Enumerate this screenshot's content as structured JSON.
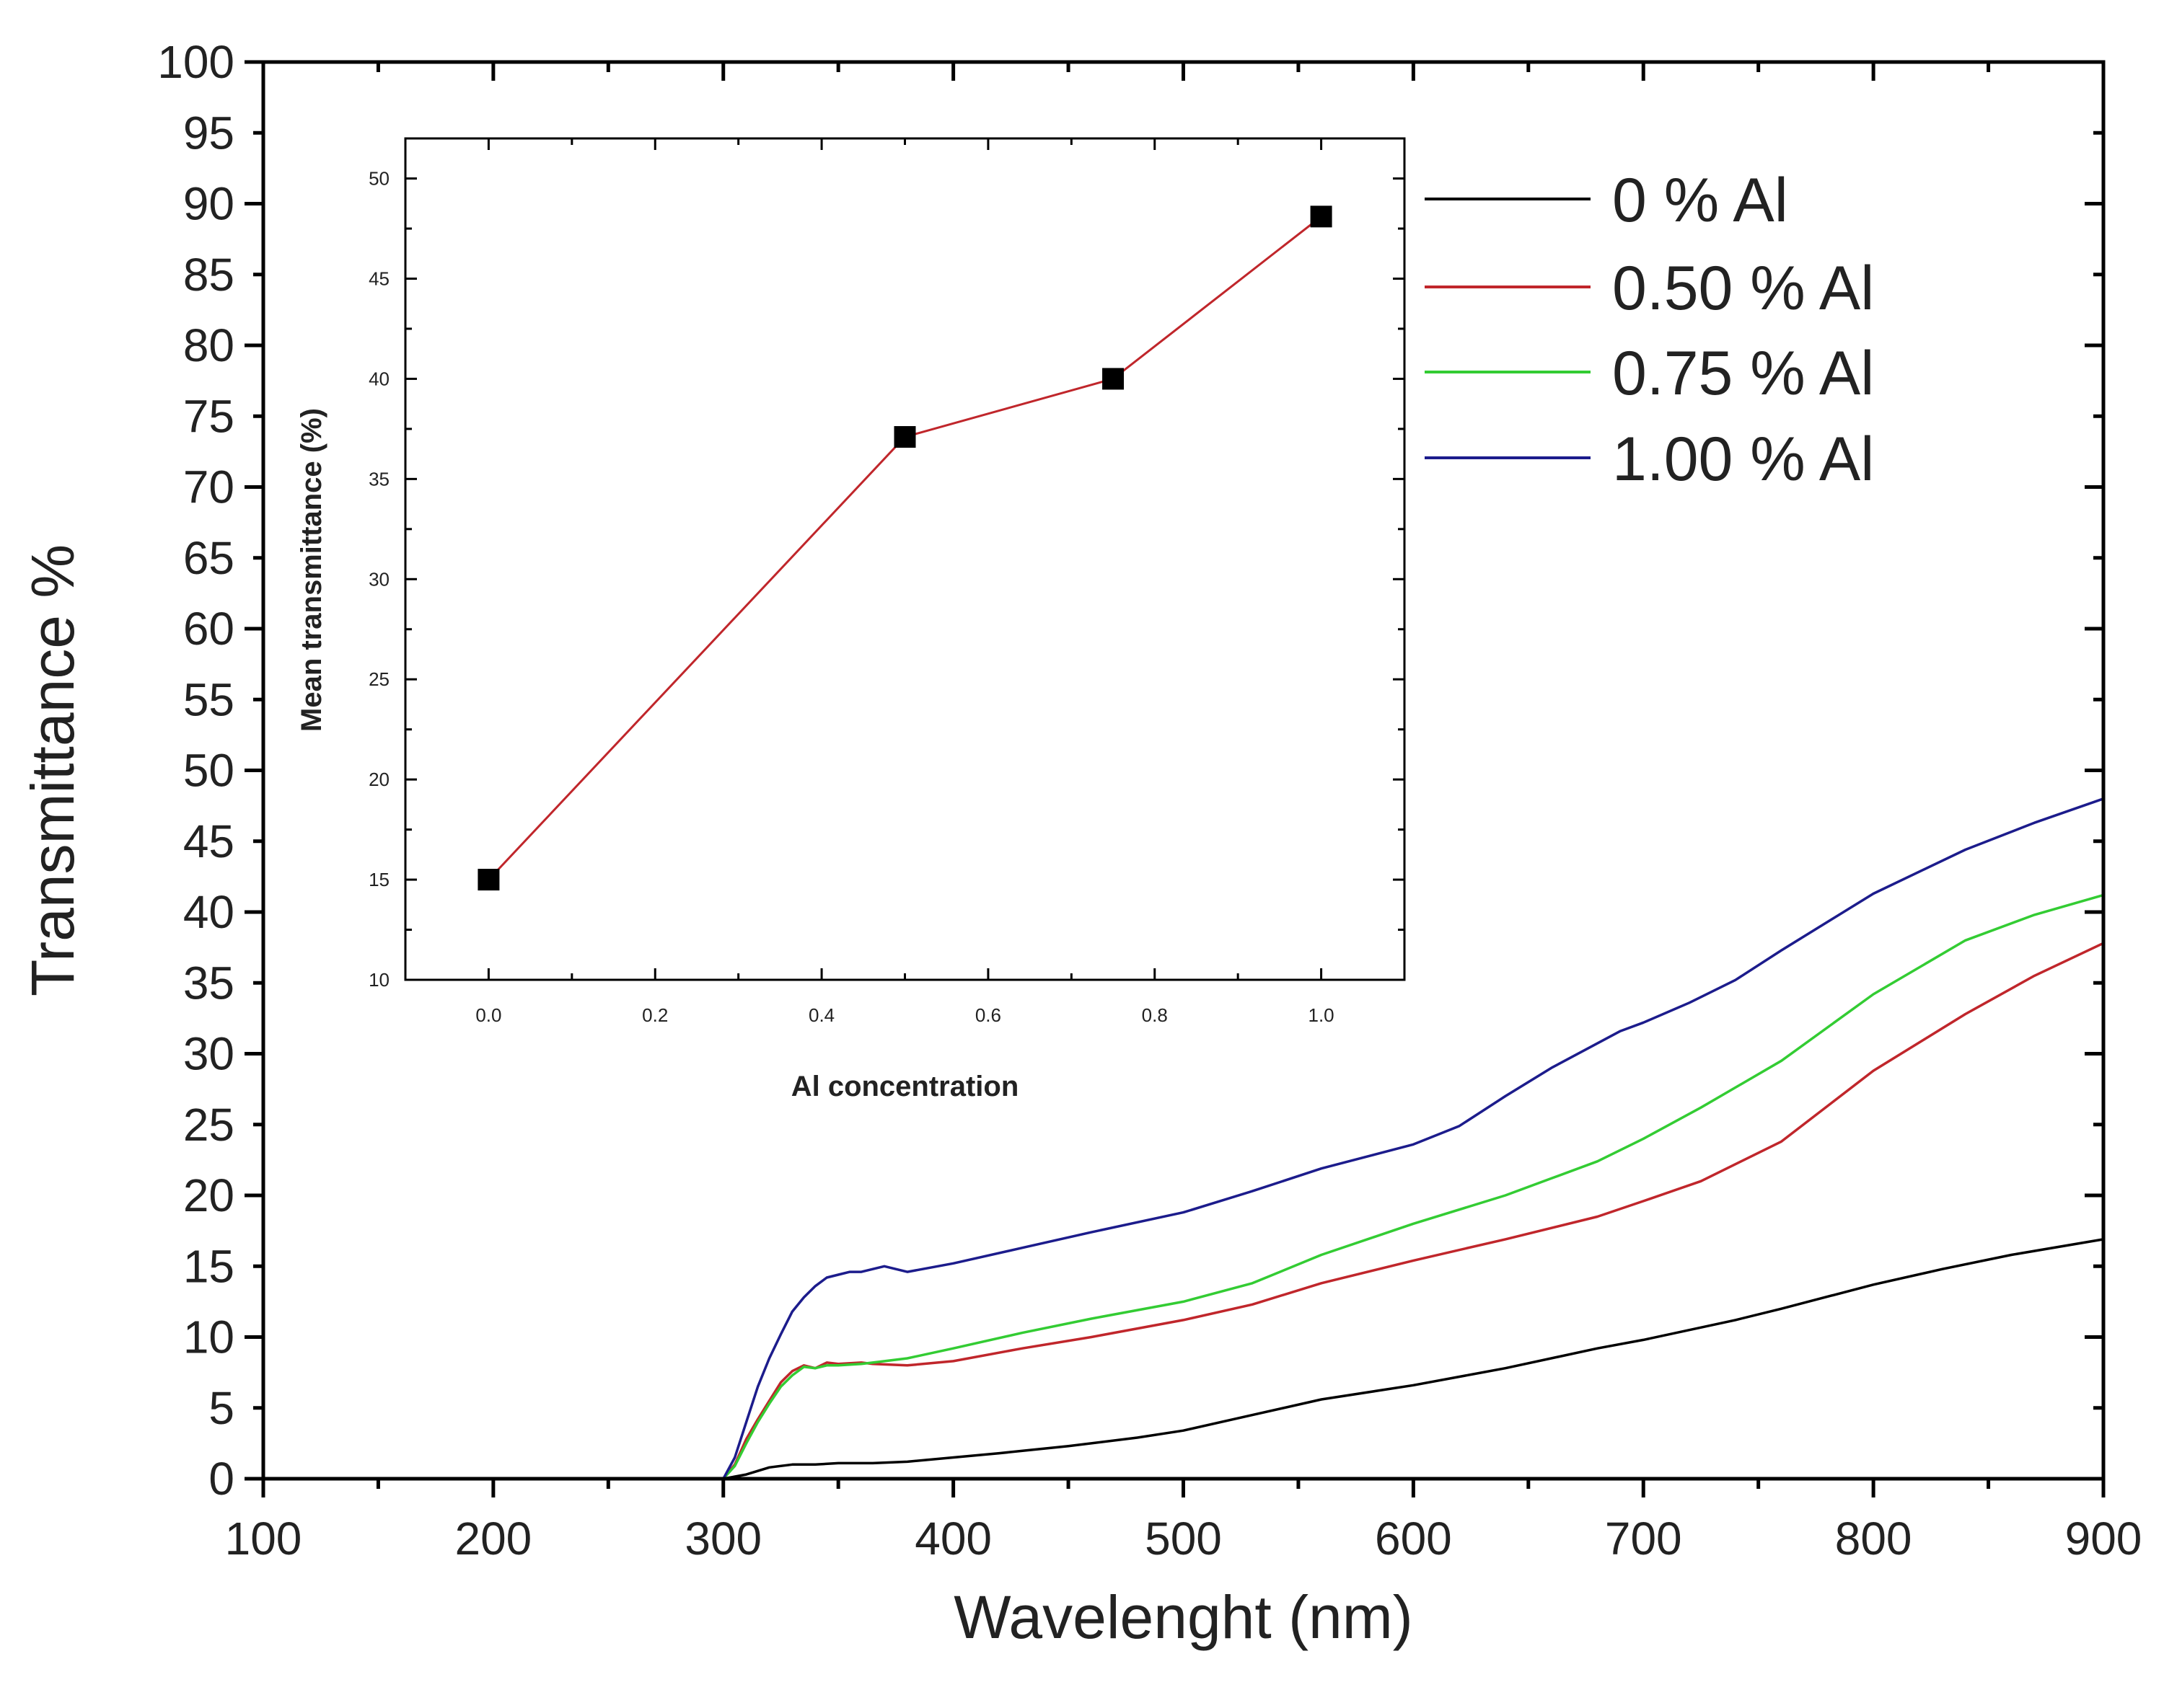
{
  "chart_data": [
    {
      "type": "line",
      "xlabel": "Wavelenght (nm)",
      "ylabel": "Transmittance %",
      "xlim": [
        100,
        900
      ],
      "ylim": [
        0,
        100
      ],
      "x_ticks": [
        "100",
        "200",
        "300",
        "400",
        "500",
        "600",
        "700",
        "800",
        "900"
      ],
      "y_ticks": [
        "0",
        "5",
        "10",
        "15",
        "20",
        "25",
        "30",
        "35",
        "40",
        "45",
        "50",
        "55",
        "60",
        "65",
        "70",
        "75",
        "80",
        "85",
        "90",
        "95",
        "100"
      ],
      "legend_position": "top-right",
      "series": [
        {
          "name": "0 % Al",
          "color": "#000000",
          "points": [
            [
              200,
              0
            ],
            [
              250,
              0
            ],
            [
              290,
              0
            ],
            [
              300,
              0
            ],
            [
              310,
              0.3
            ],
            [
              320,
              0.8
            ],
            [
              330,
              1.0
            ],
            [
              340,
              1.0
            ],
            [
              350,
              1.1
            ],
            [
              365,
              1.1
            ],
            [
              380,
              1.2
            ],
            [
              400,
              1.5
            ],
            [
              420,
              1.8
            ],
            [
              450,
              2.3
            ],
            [
              480,
              2.9
            ],
            [
              500,
              3.4
            ],
            [
              530,
              4.5
            ],
            [
              560,
              5.6
            ],
            [
              600,
              6.6
            ],
            [
              640,
              7.8
            ],
            [
              680,
              9.2
            ],
            [
              700,
              9.8
            ],
            [
              740,
              11.2
            ],
            [
              760,
              12.0
            ],
            [
              800,
              13.7
            ],
            [
              830,
              14.8
            ],
            [
              860,
              15.8
            ],
            [
              900,
              16.9
            ]
          ]
        },
        {
          "name": "0.50 % Al",
          "color": "#c0262b",
          "points": [
            [
              200,
              0
            ],
            [
              250,
              0
            ],
            [
              290,
              0
            ],
            [
              300,
              0
            ],
            [
              305,
              1.0
            ],
            [
              310,
              2.8
            ],
            [
              315,
              4.2
            ],
            [
              320,
              5.5
            ],
            [
              325,
              6.8
            ],
            [
              330,
              7.6
            ],
            [
              335,
              8.0
            ],
            [
              340,
              7.8
            ],
            [
              345,
              8.2
            ],
            [
              350,
              8.1
            ],
            [
              360,
              8.2
            ],
            [
              365,
              8.1
            ],
            [
              380,
              8.0
            ],
            [
              400,
              8.3
            ],
            [
              430,
              9.2
            ],
            [
              460,
              10.0
            ],
            [
              500,
              11.2
            ],
            [
              530,
              12.3
            ],
            [
              560,
              13.8
            ],
            [
              600,
              15.4
            ],
            [
              640,
              16.9
            ],
            [
              680,
              18.5
            ],
            [
              700,
              19.6
            ],
            [
              725,
              21.0
            ],
            [
              760,
              23.8
            ],
            [
              800,
              28.8
            ],
            [
              840,
              32.8
            ],
            [
              870,
              35.5
            ],
            [
              900,
              37.8
            ]
          ]
        },
        {
          "name": "0.75 % Al",
          "color": "#33cc33",
          "points": [
            [
              200,
              0
            ],
            [
              250,
              0
            ],
            [
              290,
              0
            ],
            [
              300,
              0
            ],
            [
              305,
              0.9
            ],
            [
              310,
              2.5
            ],
            [
              315,
              4.0
            ],
            [
              320,
              5.3
            ],
            [
              325,
              6.5
            ],
            [
              330,
              7.3
            ],
            [
              335,
              7.9
            ],
            [
              340,
              7.8
            ],
            [
              345,
              8.0
            ],
            [
              350,
              8.0
            ],
            [
              360,
              8.1
            ],
            [
              365,
              8.2
            ],
            [
              380,
              8.5
            ],
            [
              400,
              9.2
            ],
            [
              430,
              10.3
            ],
            [
              460,
              11.3
            ],
            [
              500,
              12.5
            ],
            [
              530,
              13.8
            ],
            [
              560,
              15.8
            ],
            [
              600,
              18.0
            ],
            [
              640,
              20.0
            ],
            [
              660,
              21.2
            ],
            [
              680,
              22.4
            ],
            [
              700,
              24.0
            ],
            [
              725,
              26.2
            ],
            [
              760,
              29.5
            ],
            [
              800,
              34.2
            ],
            [
              840,
              38.0
            ],
            [
              870,
              39.8
            ],
            [
              900,
              41.2
            ]
          ]
        },
        {
          "name": "1.00 % Al",
          "color": "#1c1c8c",
          "points": [
            [
              200,
              0
            ],
            [
              250,
              0
            ],
            [
              290,
              0
            ],
            [
              300,
              0
            ],
            [
              305,
              1.5
            ],
            [
              310,
              4.0
            ],
            [
              315,
              6.5
            ],
            [
              320,
              8.5
            ],
            [
              325,
              10.2
            ],
            [
              330,
              11.8
            ],
            [
              335,
              12.8
            ],
            [
              340,
              13.6
            ],
            [
              345,
              14.2
            ],
            [
              350,
              14.4
            ],
            [
              355,
              14.6
            ],
            [
              360,
              14.6
            ],
            [
              365,
              14.8
            ],
            [
              370,
              15.0
            ],
            [
              380,
              14.6
            ],
            [
              400,
              15.2
            ],
            [
              430,
              16.3
            ],
            [
              460,
              17.4
            ],
            [
              500,
              18.8
            ],
            [
              530,
              20.3
            ],
            [
              560,
              21.9
            ],
            [
              600,
              23.6
            ],
            [
              620,
              24.9
            ],
            [
              640,
              27.0
            ],
            [
              660,
              29.0
            ],
            [
              690,
              31.6
            ],
            [
              700,
              32.2
            ],
            [
              720,
              33.6
            ],
            [
              740,
              35.2
            ],
            [
              760,
              37.3
            ],
            [
              800,
              41.3
            ],
            [
              840,
              44.4
            ],
            [
              870,
              46.3
            ],
            [
              900,
              48.0
            ]
          ]
        }
      ]
    },
    {
      "type": "line",
      "inset": true,
      "xlabel": "Al concentration",
      "ylabel": "Mean transmittance (%)",
      "xlim": [
        -0.1,
        1.1
      ],
      "ylim": [
        10,
        52
      ],
      "x_ticks": [
        "0.0",
        "0.2",
        "0.4",
        "0.6",
        "0.8",
        "1.0"
      ],
      "y_ticks": [
        "10",
        "15",
        "20",
        "25",
        "30",
        "35",
        "40",
        "45",
        "50"
      ],
      "series": [
        {
          "name": "Mean transmittance",
          "color": "#c0262b",
          "marker": "square",
          "x": [
            0.0,
            0.5,
            0.75,
            1.0
          ],
          "y": [
            15.0,
            37.1,
            40.0,
            48.1
          ]
        }
      ]
    }
  ]
}
